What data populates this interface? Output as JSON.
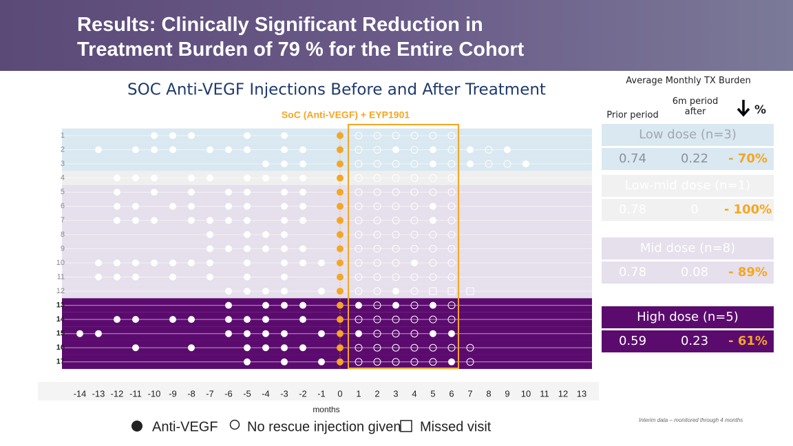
{
  "header": {
    "title_lines": [
      "Results: Clinically Significant Reduction in",
      "Treatment Burden of 79 % for the Entire Cohort"
    ]
  },
  "chart_data": {
    "type": "dotplot",
    "title": "SOC Anti-VEGF Injections Before and After Treatment",
    "subtitle": "SoC (Anti-VEGF) + EYP1901",
    "x_label": "months",
    "xlim": [
      -14,
      13
    ],
    "xticks": [
      -14,
      -13,
      -12,
      -11,
      -10,
      -9,
      -8,
      -7,
      -6,
      -5,
      -4,
      -3,
      -2,
      -1,
      0,
      1,
      2,
      3,
      4,
      5,
      6,
      7,
      8,
      9,
      10,
      11,
      12,
      13
    ],
    "treatment_month": 0,
    "treatment_color": "#f5a623",
    "groups": [
      {
        "color": "#d9e8f1",
        "dot": "#ffffff"
      },
      {
        "color": "#efefef",
        "dot": "#ffffff"
      },
      {
        "color": "#e6dfec",
        "dot": "#ffffff"
      },
      {
        "color": "#5b0b6e",
        "dot": "#ffffff"
      }
    ],
    "rows": [
      {
        "label": "1",
        "group": 0,
        "filled": [
          -10,
          -9,
          -8,
          -5,
          -3
        ],
        "open": [
          1,
          2,
          3,
          4,
          5,
          6
        ],
        "missed": []
      },
      {
        "label": "2",
        "group": 0,
        "filled": [
          -13,
          -11,
          -10,
          -9,
          -7,
          -6,
          -5,
          -3,
          -2,
          3,
          5,
          7,
          9
        ],
        "open": [
          1,
          2,
          4,
          6,
          8
        ],
        "missed": []
      },
      {
        "label": "3",
        "group": 0,
        "filled": [
          -4,
          -3,
          -2,
          5,
          7,
          10
        ],
        "open": [
          1,
          2,
          3,
          4,
          6,
          8,
          9
        ],
        "missed": []
      },
      {
        "label": "4",
        "group": 1,
        "filled": [
          -12,
          -11,
          -10,
          -8,
          -7,
          -5,
          -4,
          -3,
          -2
        ],
        "open": [
          1,
          2,
          3,
          4,
          5,
          6
        ],
        "missed": []
      },
      {
        "label": "5",
        "group": 2,
        "filled": [
          -12,
          -10,
          -8,
          -6,
          -5,
          -3,
          -2
        ],
        "open": [
          1,
          2,
          3,
          4,
          5,
          6
        ],
        "missed": []
      },
      {
        "label": "6",
        "group": 2,
        "filled": [
          -12,
          -11,
          -9,
          -8,
          -6,
          -5,
          -3,
          -2,
          5
        ],
        "open": [
          1,
          2,
          3,
          4,
          6
        ],
        "missed": []
      },
      {
        "label": "7",
        "group": 2,
        "filled": [
          -12,
          -11,
          -10,
          -8,
          -7,
          -6,
          -5,
          -3,
          -2,
          5
        ],
        "open": [
          1,
          2,
          3,
          4,
          6
        ],
        "missed": []
      },
      {
        "label": "8",
        "group": 2,
        "filled": [
          -7,
          -5,
          -4,
          -3
        ],
        "open": [
          1,
          2,
          3,
          4,
          5,
          6
        ],
        "missed": []
      },
      {
        "label": "9",
        "group": 2,
        "filled": [
          -7,
          -6,
          -5,
          -4,
          -3,
          -2
        ],
        "open": [
          1,
          2,
          3,
          4,
          5,
          6
        ],
        "missed": []
      },
      {
        "label": "10",
        "group": 2,
        "filled": [
          -13,
          -12,
          -11,
          -10,
          -9,
          -8,
          -7,
          -5,
          -3,
          -2,
          -1,
          4
        ],
        "open": [
          1,
          2,
          3,
          5,
          6
        ],
        "missed": []
      },
      {
        "label": "11",
        "group": 2,
        "filled": [
          -13,
          -12,
          -11,
          -9,
          -7,
          -5,
          -3
        ],
        "open": [
          1,
          2,
          3,
          4,
          5,
          6
        ],
        "missed": []
      },
      {
        "label": "12",
        "group": 2,
        "filled": [
          -6,
          -5,
          -4,
          -3,
          -1,
          3
        ],
        "open": [
          1,
          2,
          4
        ],
        "missed": [
          5,
          6,
          7
        ]
      },
      {
        "label": "13",
        "group": 3,
        "filled": [
          -6,
          -4,
          -3,
          -2,
          1,
          3,
          5
        ],
        "open": [
          2,
          4,
          6
        ],
        "missed": []
      },
      {
        "label": "14",
        "group": 3,
        "filled": [
          -12,
          -11,
          -9,
          -8,
          -6,
          -5,
          -4,
          -2
        ],
        "open": [
          1,
          2,
          3,
          4,
          5,
          6
        ],
        "missed": []
      },
      {
        "label": "15",
        "group": 3,
        "filled": [
          -14,
          -13,
          -6,
          -5,
          -4,
          -3,
          -1,
          1,
          5,
          6
        ],
        "open": [
          2,
          3,
          4
        ],
        "missed": []
      },
      {
        "label": "16",
        "group": 3,
        "filled": [
          -11,
          -8,
          -5,
          -4,
          -3,
          -2
        ],
        "open": [
          1,
          2,
          3,
          4,
          5,
          6,
          7
        ],
        "missed": []
      },
      {
        "label": "17",
        "group": 3,
        "filled": [
          -5,
          -3,
          -1,
          6
        ],
        "open": [
          1,
          2,
          3,
          4,
          5,
          7
        ],
        "missed": []
      }
    ],
    "legend": [
      "Anti-VEGF",
      "No rescue injection given",
      "Missed visit"
    ]
  },
  "footnote": "Interim data – monitored through 4 months",
  "burden_table": {
    "title": "Average Monthly TX Burden",
    "columns": [
      "Prior period",
      "6m period after",
      "%"
    ],
    "groups": [
      {
        "name": "Low dose (n=3)",
        "cells": [
          "0.74",
          "0.22",
          "- 70%"
        ]
      },
      {
        "name": "Low-mid dose (n=1)",
        "cells": [
          "0.78",
          "0",
          "- 100%"
        ]
      },
      {
        "name": "Mid dose (n=8)",
        "cells": [
          "0.78",
          "0.08",
          "- 89%"
        ]
      },
      {
        "name": "High dose (n=5)",
        "cells": [
          "0.59",
          "0.23",
          "- 61%"
        ]
      }
    ]
  }
}
